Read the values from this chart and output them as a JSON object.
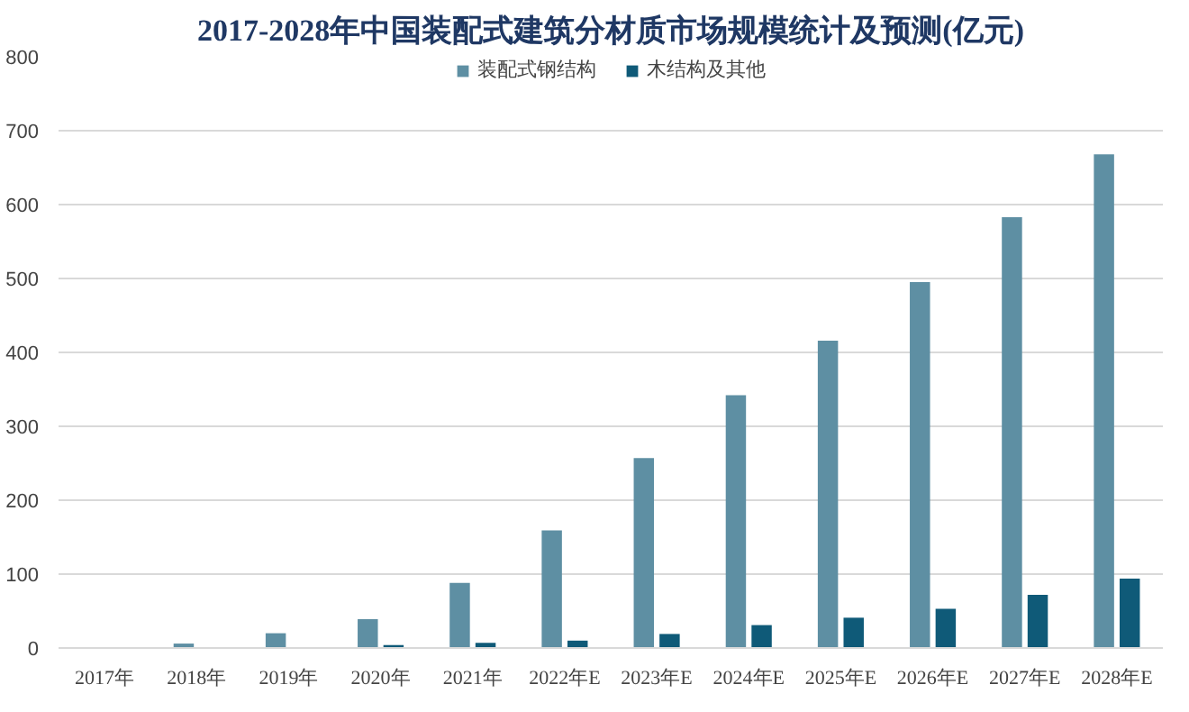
{
  "chart_data": {
    "type": "bar",
    "title": "2017-2028年中国装配式建筑分材质市场规模统计及预测(亿元)",
    "categories": [
      "2017年",
      "2018年",
      "2019年",
      "2020年",
      "2021年",
      "2022年E",
      "2023年E",
      "2024年E",
      "2025年E",
      "2026年E",
      "2027年E",
      "2028年E"
    ],
    "series": [
      {
        "name": "装配式钢结构",
        "color": "#5e8fa3",
        "values": [
          0,
          6,
          20,
          39,
          88,
          159,
          257,
          342,
          416,
          495,
          583,
          668
        ]
      },
      {
        "name": "木结构及其他",
        "color": "#0f5a78",
        "values": [
          0,
          null,
          null,
          4,
          7,
          10,
          19,
          31,
          41,
          53,
          72,
          94
        ]
      }
    ],
    "ylim": [
      0,
      800
    ],
    "yticks": [
      0,
      100,
      200,
      300,
      400,
      500,
      600,
      700,
      800
    ],
    "grid": "y",
    "legend": "top"
  }
}
